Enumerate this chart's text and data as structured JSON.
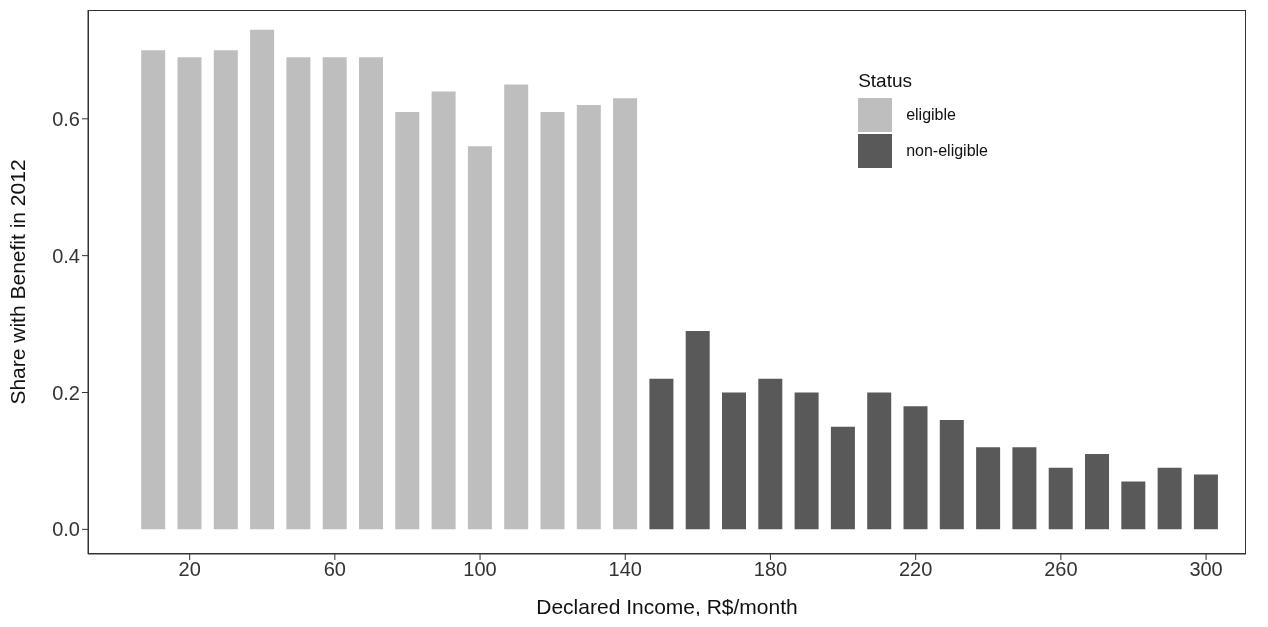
{
  "chart_data": {
    "type": "bar",
    "xlabel": "Declared Income, R$/month",
    "ylabel": "Share with Benefit in 2012",
    "legend_title": "Status",
    "legend": "top right",
    "grid": false,
    "x": [
      10,
      20,
      30,
      40,
      50,
      60,
      70,
      80,
      90,
      100,
      110,
      120,
      130,
      140,
      150,
      160,
      170,
      180,
      190,
      200,
      210,
      220,
      230,
      240,
      250,
      260,
      270,
      280,
      290,
      300
    ],
    "series": [
      {
        "name": "eligible",
        "color": "#bebebe",
        "values": [
          0.7,
          0.69,
          0.7,
          0.73,
          0.69,
          0.69,
          0.69,
          0.61,
          0.64,
          0.56,
          0.65,
          0.61,
          0.62,
          0.63,
          null,
          null,
          null,
          null,
          null,
          null,
          null,
          null,
          null,
          null,
          null,
          null,
          null,
          null,
          null,
          null
        ]
      },
      {
        "name": "non-eligible",
        "color": "#595959",
        "values": [
          null,
          null,
          null,
          null,
          null,
          null,
          null,
          null,
          null,
          null,
          null,
          null,
          null,
          null,
          0.22,
          0.29,
          0.2,
          0.22,
          0.2,
          0.15,
          0.2,
          0.18,
          0.16,
          0.12,
          0.12,
          0.09,
          0.11,
          0.07,
          0.09,
          0.08
        ]
      }
    ],
    "xlim": [
      -8,
      311
    ],
    "xticks": [
      20,
      60,
      100,
      140,
      180,
      220,
      260,
      300
    ],
    "ylim": [
      -0.036,
      0.759
    ],
    "yticks": [
      {
        "value": 0,
        "label": "0.0"
      },
      {
        "value": 0.2,
        "label": "0.2"
      },
      {
        "value": 0.4,
        "label": "0.4"
      },
      {
        "value": 0.6,
        "label": "0.6"
      }
    ]
  }
}
